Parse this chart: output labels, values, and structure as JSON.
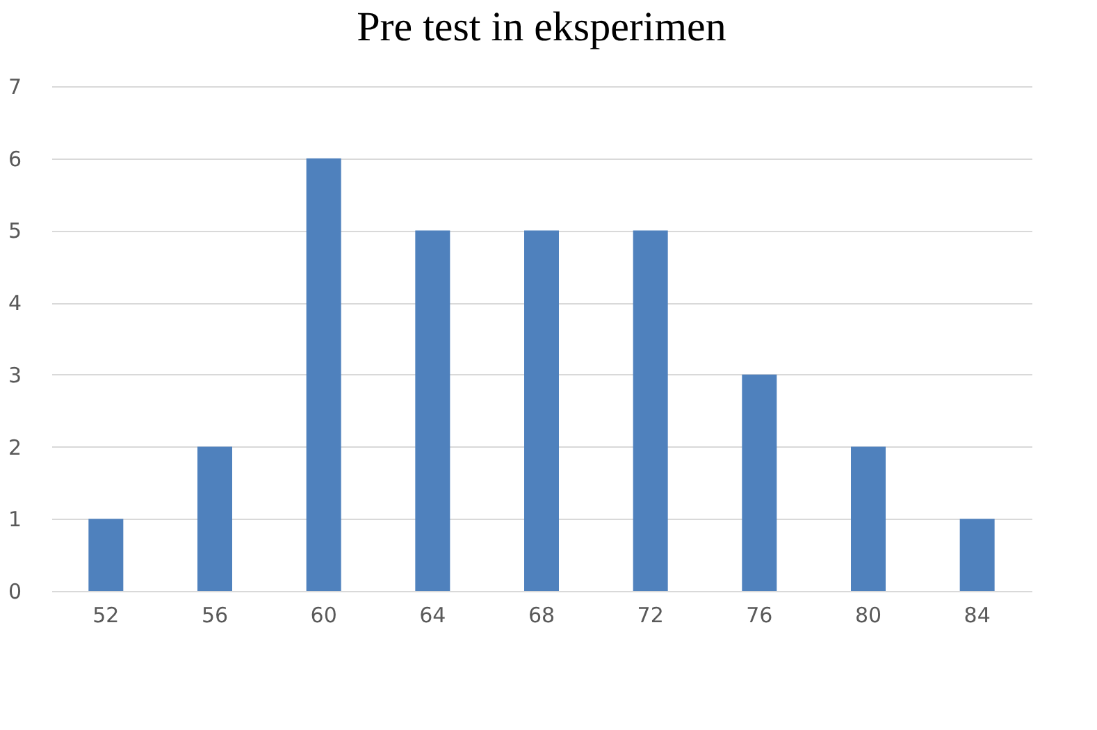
{
  "chart_data": {
    "type": "bar",
    "title": "Pre test in  eksperimen",
    "categories": [
      "52",
      "56",
      "60",
      "64",
      "68",
      "72",
      "76",
      "80",
      "84"
    ],
    "values": [
      1,
      2,
      6,
      5,
      5,
      5,
      3,
      2,
      1
    ],
    "color": "#4f81bd",
    "ylim": [
      0,
      7
    ],
    "yticks": [
      0,
      1,
      2,
      3,
      4,
      5,
      6,
      7
    ],
    "grid": "y"
  }
}
